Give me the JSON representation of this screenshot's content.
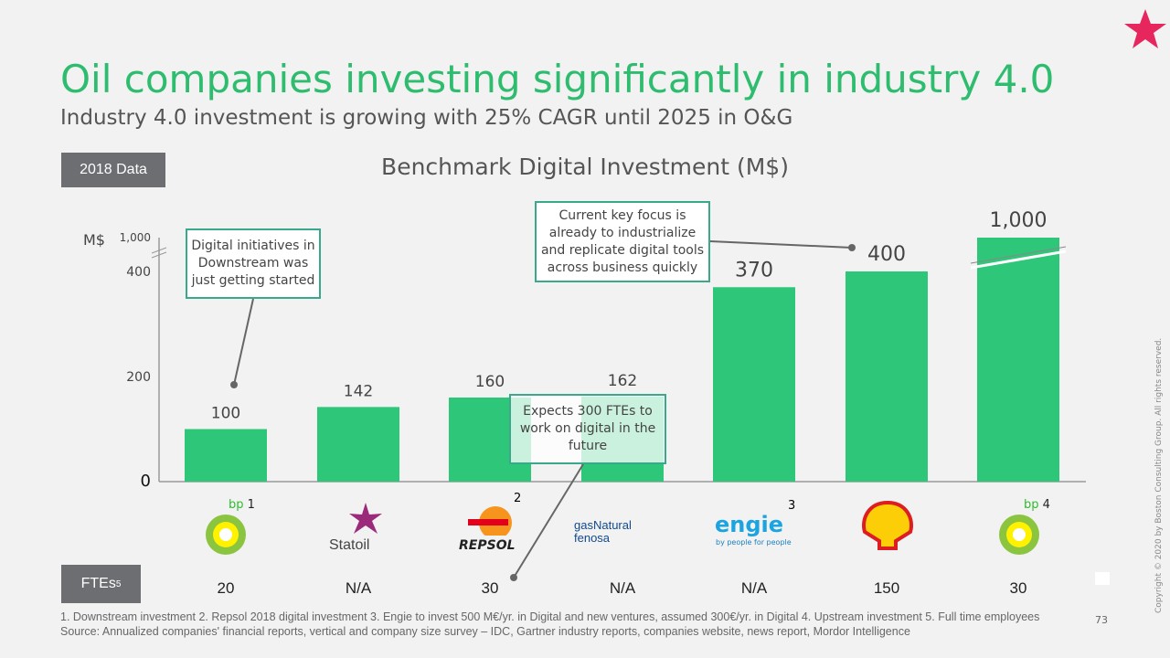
{
  "title": "Oil companies investing significantly in industry 4.0",
  "subtitle": "Industry 4.0 investment is growing with 25% CAGR until 2025 in O&G",
  "data_tag": "2018 Data",
  "fte_tag": "FTEs",
  "fte_sup": "5",
  "callouts": [
    "Digital initiatives in Downstream was just getting started",
    "Current key focus is already to industrialize and replicate digital tools across business quickly",
    "Expects 300 FTEs to work on digital in the future"
  ],
  "companies": [
    {
      "name": "bp",
      "sup": "1"
    },
    {
      "name": "Statoil",
      "sup": ""
    },
    {
      "name": "REPSOL",
      "sup": "2"
    },
    {
      "name": "gasNatural fenosa",
      "sup": ""
    },
    {
      "name": "engie",
      "tagline": "by people for people",
      "sup": "3"
    },
    {
      "name": "Shell",
      "sup": ""
    },
    {
      "name": "bp",
      "sup": "4"
    }
  ],
  "ftes": [
    "20",
    "N/A",
    "30",
    "N/A",
    "N/A",
    "150",
    "30"
  ],
  "footnotes": "1. Downstream investment 2. Repsol 2018 digital investment 3. Engie to invest 500 M€/yr. in Digital and new ventures, assumed 300€/yr. in Digital 4. Upstream investment 5. Full time employees",
  "source": "Source: Annualized companies' financial reports, vertical and company size survey – IDC, Gartner industry reports, companies website, news report, Mordor Intelligence",
  "page": "73",
  "copyright": "Copyright © 2020 by Boston Consulting Group. All rights reserved.",
  "colors": {
    "bar": "#2ec77a",
    "title": "#2ebc6f",
    "star": "#e8265e"
  },
  "chart_data": {
    "type": "bar",
    "title": "Benchmark Digital Investment (M$)",
    "ylabel": "M$",
    "categories": [
      "BP (Downstream)",
      "Statoil",
      "Repsol",
      "Gas Natural Fenosa",
      "Engie",
      "Shell",
      "BP (Upstream)"
    ],
    "values": [
      100,
      142,
      160,
      162,
      370,
      400,
      1000
    ],
    "value_labels": [
      "100",
      "142",
      "160",
      "162",
      "370",
      "400",
      "1,000"
    ],
    "yticks": [
      "0",
      "200",
      "400",
      "1,000"
    ],
    "ylim": [
      0,
      400
    ],
    "axis_break": true,
    "grid": false
  }
}
